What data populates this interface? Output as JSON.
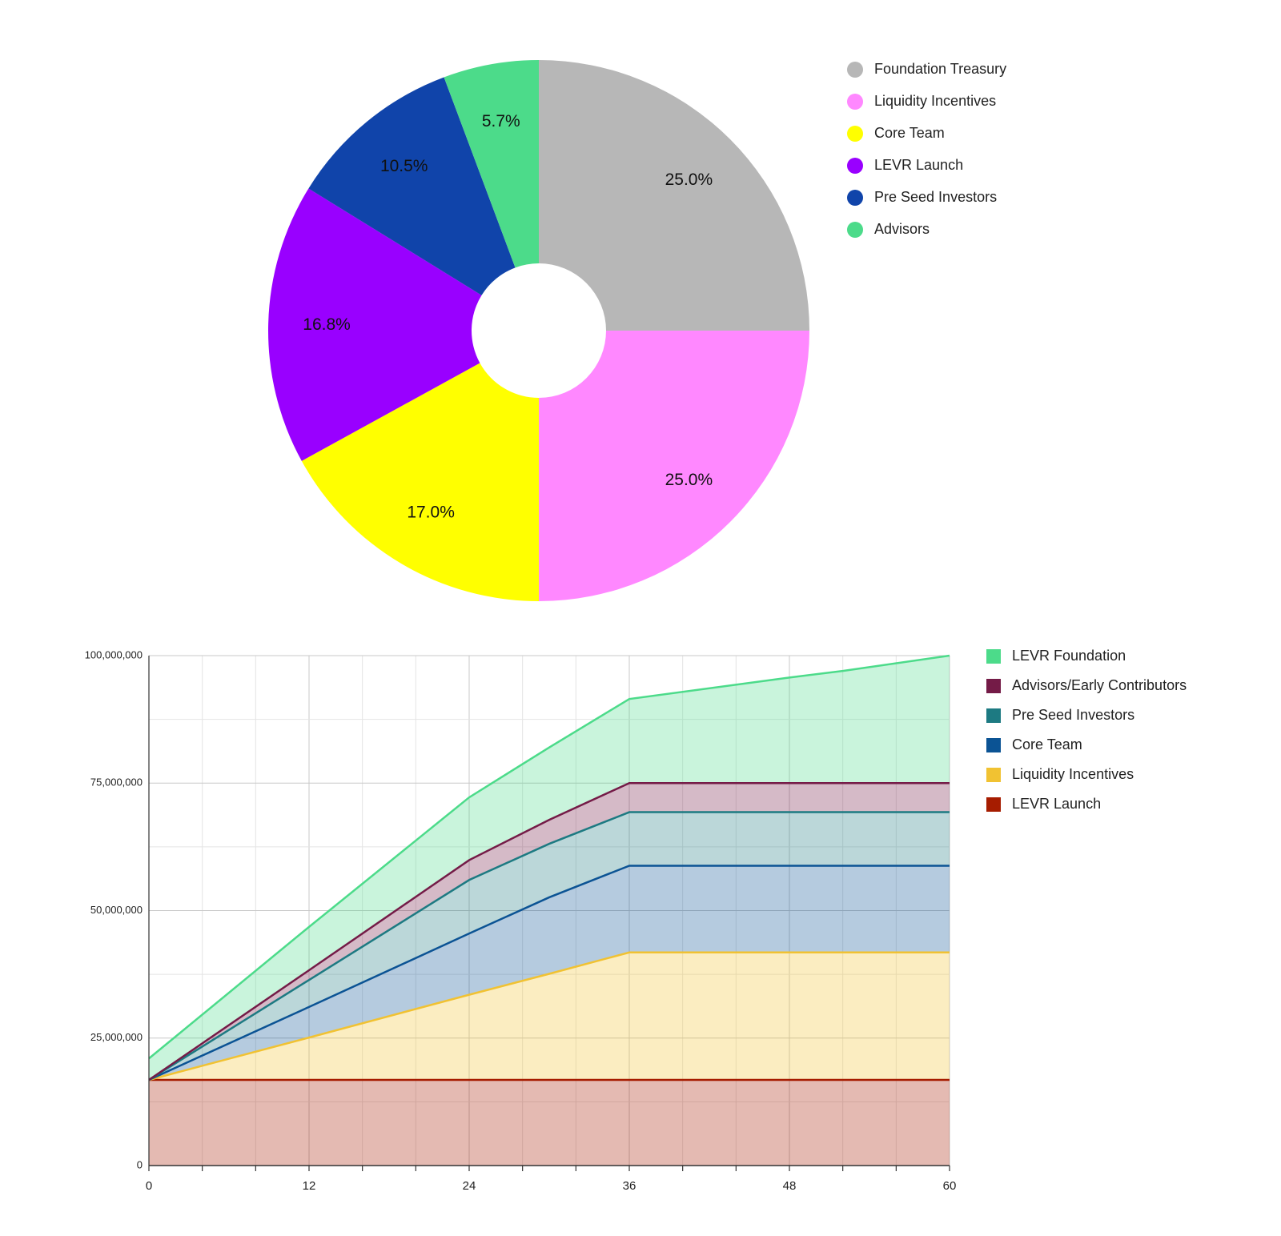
{
  "chart_data": [
    {
      "type": "pie",
      "donut": true,
      "legend_position": "right",
      "categories": [
        "Foundation Treasury",
        "Liquidity Incentives",
        "Core Team",
        "LEVR Launch",
        "Pre Seed Investors",
        "Advisors"
      ],
      "values": [
        25.0,
        25.0,
        17.0,
        16.8,
        10.5,
        5.7
      ],
      "labels": [
        "25.0%",
        "25.0%",
        "17.0%",
        "16.8%",
        "10.5%",
        "5.7%"
      ],
      "colors": [
        "#b7b7b7",
        "#ff88ff",
        "#ffff00",
        "#9900ff",
        "#1044aa",
        "#4cdb8a"
      ]
    },
    {
      "type": "area",
      "stacked": true,
      "legend_position": "right",
      "grid": true,
      "x": [
        0,
        12,
        24,
        30,
        36,
        48,
        52,
        60
      ],
      "x_ticks": [
        "0",
        "12",
        "24",
        "36",
        "48",
        "60"
      ],
      "xlim": [
        0,
        60
      ],
      "ylim": [
        0,
        100000000
      ],
      "y_ticks": [
        "0",
        "25,000,000",
        "50,000,000",
        "75,000,000",
        "100,000,000"
      ],
      "series": [
        {
          "name": "LEVR Launch",
          "color": "#a61c00",
          "values": [
            16800000,
            16800000,
            16800000,
            16800000,
            16800000,
            16800000,
            16800000,
            16800000
          ]
        },
        {
          "name": "Liquidity Incentives",
          "color": "#f1c232",
          "values": [
            0,
            8300000,
            16700000,
            20800000,
            25000000,
            25000000,
            25000000,
            25000000
          ]
        },
        {
          "name": "Core Team",
          "color": "#0b5394",
          "values": [
            0,
            6000000,
            12000000,
            15000000,
            17000000,
            17000000,
            17000000,
            17000000
          ]
        },
        {
          "name": "Pre Seed Investors",
          "color": "#1d7a82",
          "values": [
            0,
            5300000,
            10500000,
            10500000,
            10500000,
            10500000,
            10500000,
            10500000
          ]
        },
        {
          "name": "Advisors/Early Contributors",
          "color": "#741b47",
          "values": [
            0,
            1900000,
            3900000,
            4700000,
            5700000,
            5700000,
            5700000,
            5700000
          ]
        },
        {
          "name": "LEVR Foundation",
          "color": "#4cdb8a",
          "values": [
            4200000,
            8500000,
            12300000,
            14200000,
            16500000,
            20700000,
            22000000,
            25000000
          ]
        }
      ],
      "legend_order": [
        "LEVR Foundation",
        "Advisors/Early Contributors",
        "Pre Seed Investors",
        "Core Team",
        "Liquidity Incentives",
        "LEVR Launch"
      ]
    }
  ]
}
